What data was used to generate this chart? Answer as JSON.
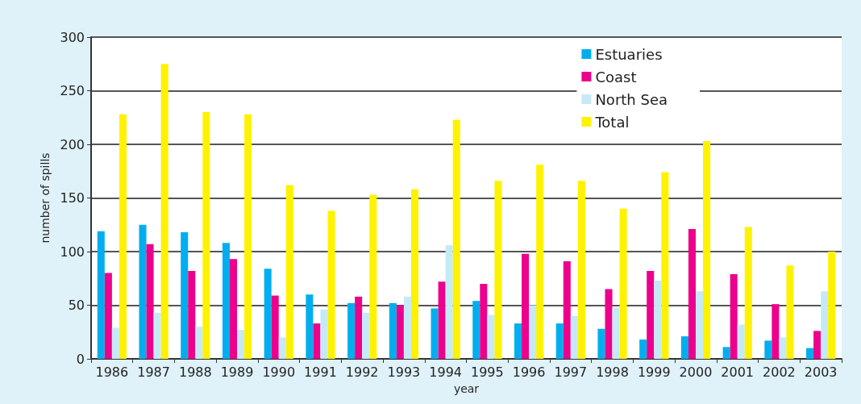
{
  "chart_data": {
    "type": "bar",
    "xlabel": "year",
    "ylabel": "number of spills",
    "categories": [
      "1986",
      "1987",
      "1988",
      "1989",
      "1990",
      "1991",
      "1992",
      "1993",
      "1994",
      "1995",
      "1996",
      "1997",
      "1998",
      "1999",
      "2000",
      "2001",
      "2002",
      "2003"
    ],
    "series": [
      {
        "name": "Estuaries",
        "color": "#00aeef",
        "values": [
          119,
          125,
          118,
          108,
          84,
          60,
          52,
          52,
          47,
          54,
          33,
          33,
          28,
          18,
          21,
          11,
          17,
          10
        ]
      },
      {
        "name": "Coast",
        "color": "#ec008c",
        "values": [
          80,
          107,
          82,
          93,
          59,
          33,
          58,
          50,
          72,
          70,
          98,
          91,
          65,
          82,
          121,
          79,
          51,
          26
        ]
      },
      {
        "name": "North Sea",
        "color": "#c6e9f8",
        "values": [
          29,
          43,
          30,
          27,
          20,
          46,
          43,
          58,
          106,
          41,
          50,
          40,
          48,
          73,
          63,
          32,
          20,
          63
        ]
      },
      {
        "name": "Total",
        "color": "#fff200",
        "values": [
          228,
          275,
          230,
          228,
          162,
          138,
          153,
          158,
          223,
          166,
          181,
          166,
          140,
          174,
          203,
          123,
          87,
          100
        ]
      }
    ],
    "ylim": [
      0,
      300
    ],
    "yticks": [
      0,
      50,
      100,
      150,
      200,
      250,
      300
    ],
    "grid": "y",
    "legend": "top right"
  }
}
